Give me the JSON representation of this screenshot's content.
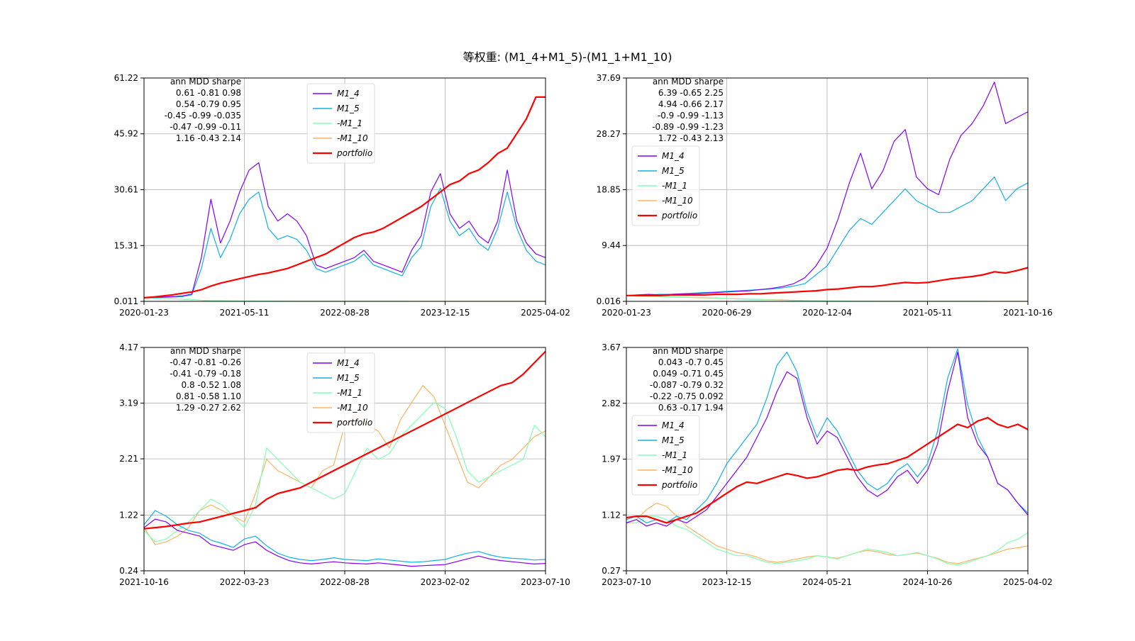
{
  "title": "等权重: (M1_4+M1_5)-(M1_1+M1_10)",
  "colors": {
    "M1_4": "#8000ff",
    "M1_5": "#10b0e8",
    "-M1_1": "#80ffb4",
    "-M1_10": "#ffb360",
    "portfolio": "#ff0000"
  },
  "chart_data": [
    {
      "type": "line",
      "panel": "top-left",
      "legend_position": "top-center",
      "ylim": [
        0.011,
        61.22
      ],
      "yticks": [
        "0.011",
        "15.31",
        "30.61",
        "45.92",
        "61.22"
      ],
      "ytick_values": [
        0.011,
        15.31,
        30.61,
        45.92,
        61.22
      ],
      "xticks": [
        "2020-01-23",
        "2021-05-11",
        "2022-08-28",
        "2023-12-15",
        "2025-04-02"
      ],
      "stats_header": "ann   MDD sharpe",
      "stats_rows": [
        "0.61 -0.81   0.98",
        "0.54 -0.79   0.95",
        "-0.45 -0.99 -0.035",
        "-0.47 -0.99  -0.11",
        "1.16 -0.43   2.14"
      ],
      "legend": [
        "M1_4",
        "M1_5",
        "-M1_1",
        "-M1_10",
        "portfolio"
      ],
      "series": [
        {
          "name": "M1_4",
          "values": [
            1.0,
            1.1,
            1.2,
            1.3,
            1.5,
            2.0,
            12,
            28,
            16,
            22,
            30,
            36,
            38,
            26,
            22,
            24,
            22,
            18,
            10,
            9,
            10,
            11,
            12,
            14,
            11,
            10,
            9,
            8,
            14,
            18,
            30,
            35,
            24,
            20,
            22,
            18,
            16,
            22,
            36,
            22,
            16,
            13,
            12
          ]
        },
        {
          "name": "M1_5",
          "values": [
            1.0,
            1.0,
            1.1,
            1.2,
            1.3,
            1.8,
            9,
            20,
            12,
            17,
            24,
            28,
            30,
            20,
            17,
            18,
            17,
            14,
            9,
            8,
            9,
            10,
            11,
            13,
            10,
            9,
            8,
            7,
            12,
            15,
            26,
            31,
            22,
            18,
            20,
            16,
            14,
            20,
            30,
            20,
            14,
            11,
            10
          ]
        },
        {
          "name": "-M1_1",
          "values": [
            1.0,
            0.9,
            0.8,
            0.7,
            0.6,
            0.5,
            0.3,
            0.2,
            0.2,
            0.15,
            0.1,
            0.1,
            0.08,
            0.08,
            0.07,
            0.06,
            0.05,
            0.05,
            0.05,
            0.04,
            0.04,
            0.04,
            0.03,
            0.03,
            0.03,
            0.03,
            0.03,
            0.03,
            0.02,
            0.02,
            0.02,
            0.02,
            0.02,
            0.02,
            0.02,
            0.02,
            0.02,
            0.02,
            0.02,
            0.02,
            0.02,
            0.02,
            0.02
          ]
        },
        {
          "name": "-M1_10",
          "values": [
            1.0,
            0.9,
            0.8,
            0.7,
            0.6,
            0.5,
            0.3,
            0.2,
            0.2,
            0.15,
            0.1,
            0.1,
            0.08,
            0.08,
            0.07,
            0.06,
            0.05,
            0.05,
            0.05,
            0.04,
            0.04,
            0.04,
            0.03,
            0.03,
            0.03,
            0.03,
            0.03,
            0.03,
            0.02,
            0.02,
            0.02,
            0.02,
            0.02,
            0.02,
            0.02,
            0.02,
            0.02,
            0.02,
            0.02,
            0.02,
            0.02,
            0.02,
            0.02
          ]
        },
        {
          "name": "portfolio",
          "values": [
            1.0,
            1.2,
            1.5,
            1.8,
            2.2,
            2.6,
            3.2,
            4.2,
            5.0,
            5.6,
            6.2,
            6.8,
            7.4,
            7.8,
            8.4,
            9.0,
            10.0,
            11.0,
            12.0,
            13.0,
            14.5,
            16.0,
            17.5,
            18.5,
            19.0,
            20.0,
            21.5,
            23.0,
            24.5,
            26.0,
            28.0,
            30.0,
            32.0,
            33.0,
            35.0,
            36.0,
            38.0,
            40.5,
            42.0,
            46.0,
            50.0,
            56.0,
            56.0
          ]
        }
      ]
    },
    {
      "type": "line",
      "panel": "top-right",
      "legend_position": "center-left",
      "ylim": [
        0.016,
        37.69
      ],
      "yticks": [
        "0.016",
        "9.44",
        "18.85",
        "28.27",
        "37.69"
      ],
      "ytick_values": [
        0.016,
        9.44,
        18.85,
        28.27,
        37.69
      ],
      "xticks": [
        "2020-01-23",
        "2020-06-29",
        "2020-12-04",
        "2021-05-11",
        "2021-10-16"
      ],
      "stats_header": "ann   MDD sharpe",
      "stats_rows": [
        "6.39 -0.65   2.25",
        "4.94 -0.66   2.17",
        "-0.9 -0.99  -1.13",
        "-0.89 -0.99  -1.23",
        "1.72 -0.43   2.13"
      ],
      "legend": [
        "M1_4",
        "M1_5",
        "-M1_1",
        "-M1_10",
        "portfolio"
      ],
      "series": [
        {
          "name": "M1_4",
          "values": [
            1.0,
            1.1,
            1.2,
            1.1,
            1.2,
            1.3,
            1.3,
            1.4,
            1.5,
            1.6,
            1.7,
            1.8,
            2.0,
            2.2,
            2.5,
            3.0,
            4.0,
            6.0,
            9.0,
            14,
            20,
            25,
            19,
            22,
            27,
            29,
            21,
            19,
            18,
            24,
            28,
            30,
            33,
            37,
            30,
            31,
            32
          ]
        },
        {
          "name": "M1_5",
          "values": [
            1.0,
            1.0,
            1.1,
            1.2,
            1.2,
            1.3,
            1.4,
            1.5,
            1.6,
            1.7,
            1.8,
            1.9,
            2.0,
            2.1,
            2.3,
            2.6,
            3.0,
            4.5,
            6.0,
            9.0,
            12,
            14,
            13,
            15,
            17,
            19,
            17,
            16,
            15,
            15,
            16,
            17,
            19,
            21,
            17,
            19,
            20
          ]
        },
        {
          "name": "-M1_1",
          "values": [
            1.0,
            0.95,
            0.9,
            0.85,
            0.8,
            0.75,
            0.7,
            0.65,
            0.6,
            0.5,
            0.4,
            0.35,
            0.3,
            0.25,
            0.2,
            0.15,
            0.12,
            0.1,
            0.08,
            0.06,
            0.05,
            0.05,
            0.05,
            0.04,
            0.04,
            0.04,
            0.04,
            0.03,
            0.03,
            0.03,
            0.03,
            0.03,
            0.03,
            0.02,
            0.02,
            0.02,
            0.02
          ]
        },
        {
          "name": "-M1_10",
          "values": [
            1.0,
            0.9,
            0.85,
            0.8,
            0.75,
            0.7,
            0.65,
            0.6,
            0.55,
            0.5,
            0.45,
            0.4,
            0.35,
            0.3,
            0.25,
            0.2,
            0.15,
            0.12,
            0.1,
            0.08,
            0.06,
            0.05,
            0.05,
            0.04,
            0.04,
            0.04,
            0.04,
            0.03,
            0.03,
            0.03,
            0.03,
            0.03,
            0.03,
            0.02,
            0.02,
            0.02,
            0.02
          ]
        },
        {
          "name": "portfolio",
          "values": [
            1.0,
            1.0,
            1.0,
            1.0,
            1.1,
            1.1,
            1.1,
            1.1,
            1.2,
            1.2,
            1.2,
            1.3,
            1.3,
            1.4,
            1.5,
            1.6,
            1.7,
            1.8,
            2.0,
            2.1,
            2.3,
            2.5,
            2.5,
            2.7,
            3.0,
            3.2,
            3.1,
            3.2,
            3.5,
            3.8,
            4.0,
            4.2,
            4.5,
            5.0,
            4.8,
            5.2,
            5.7
          ]
        }
      ]
    },
    {
      "type": "line",
      "panel": "bottom-left",
      "legend_position": "top-center",
      "ylim": [
        0.24,
        4.17
      ],
      "yticks": [
        "0.24",
        "1.22",
        "2.21",
        "3.19",
        "4.17"
      ],
      "ytick_values": [
        0.24,
        1.22,
        2.21,
        3.19,
        4.17
      ],
      "xticks": [
        "2021-10-16",
        "2022-03-23",
        "2022-08-28",
        "2023-02-02",
        "2023-07-10"
      ],
      "stats_header": "ann   MDD sharpe",
      "stats_rows": [
        "-0.47 -0.81  -0.26",
        "-0.41 -0.79  -0.18",
        "0.8 -0.52   1.08",
        "0.81 -0.58   1.10",
        "1.29 -0.27   2.62"
      ],
      "legend": [
        "M1_4",
        "M1_5",
        "-M1_1",
        "-M1_10",
        "portfolio"
      ],
      "series": [
        {
          "name": "M1_4",
          "values": [
            1.0,
            1.15,
            1.1,
            0.95,
            0.9,
            0.85,
            0.7,
            0.65,
            0.6,
            0.7,
            0.75,
            0.6,
            0.5,
            0.42,
            0.38,
            0.36,
            0.38,
            0.4,
            0.38,
            0.37,
            0.36,
            0.38,
            0.36,
            0.34,
            0.32,
            0.33,
            0.34,
            0.35,
            0.4,
            0.45,
            0.5,
            0.45,
            0.42,
            0.4,
            0.38,
            0.36,
            0.37
          ]
        },
        {
          "name": "M1_5",
          "values": [
            1.05,
            1.3,
            1.2,
            1.05,
            0.95,
            0.9,
            0.78,
            0.72,
            0.65,
            0.8,
            0.85,
            0.68,
            0.55,
            0.48,
            0.44,
            0.42,
            0.44,
            0.47,
            0.44,
            0.43,
            0.42,
            0.45,
            0.43,
            0.41,
            0.39,
            0.4,
            0.42,
            0.44,
            0.5,
            0.55,
            0.58,
            0.52,
            0.48,
            0.46,
            0.45,
            0.43,
            0.44
          ]
        },
        {
          "name": "-M1_1",
          "values": [
            0.95,
            0.75,
            0.8,
            0.95,
            1.1,
            1.3,
            1.5,
            1.4,
            1.2,
            1.0,
            1.4,
            2.4,
            2.2,
            2.0,
            1.8,
            1.7,
            1.6,
            1.5,
            1.6,
            2.0,
            2.4,
            2.2,
            2.3,
            2.6,
            2.8,
            3.0,
            3.2,
            3.1,
            2.6,
            2.0,
            1.8,
            1.9,
            2.0,
            2.1,
            2.2,
            2.8,
            2.6
          ]
        },
        {
          "name": "-M1_10",
          "values": [
            1.0,
            0.7,
            0.75,
            0.85,
            1.0,
            1.3,
            1.4,
            1.3,
            1.2,
            1.1,
            1.6,
            2.2,
            2.0,
            1.9,
            1.8,
            1.7,
            2.0,
            2.1,
            2.8,
            3.0,
            2.8,
            2.7,
            2.4,
            2.9,
            3.2,
            3.5,
            3.3,
            2.8,
            2.3,
            1.8,
            1.7,
            1.9,
            2.1,
            2.2,
            2.4,
            2.6,
            2.7
          ]
        },
        {
          "name": "portfolio",
          "values": [
            0.98,
            1.0,
            1.02,
            1.05,
            1.08,
            1.1,
            1.15,
            1.2,
            1.25,
            1.3,
            1.35,
            1.5,
            1.6,
            1.65,
            1.7,
            1.8,
            1.9,
            2.0,
            2.1,
            2.2,
            2.3,
            2.4,
            2.5,
            2.6,
            2.7,
            2.8,
            2.9,
            3.0,
            3.1,
            3.2,
            3.3,
            3.4,
            3.5,
            3.55,
            3.7,
            3.9,
            4.1
          ]
        }
      ]
    },
    {
      "type": "line",
      "panel": "bottom-right",
      "legend_position": "center-left",
      "ylim": [
        0.27,
        3.67
      ],
      "yticks": [
        "0.27",
        "1.12",
        "1.97",
        "2.82",
        "3.67"
      ],
      "ytick_values": [
        0.27,
        1.12,
        1.97,
        2.82,
        3.67
      ],
      "xticks": [
        "2023-07-10",
        "2023-12-15",
        "2024-05-21",
        "2024-10-26",
        "2025-04-02"
      ],
      "stats_header": "ann   MDD sharpe",
      "stats_rows": [
        "0.043  -0.7   0.45",
        "0.049 -0.71   0.45",
        "-0.087 -0.79   0.32",
        "-0.22 -0.75  0.092",
        "0.63 -0.17   1.94"
      ],
      "legend": [
        "M1_4",
        "M1_5",
        "-M1_1",
        "-M1_10",
        "portfolio"
      ],
      "series": [
        {
          "name": "M1_4",
          "values": [
            1.0,
            1.05,
            0.95,
            1.0,
            0.95,
            1.05,
            1.0,
            1.1,
            1.2,
            1.4,
            1.6,
            1.8,
            2.0,
            2.3,
            2.6,
            3.0,
            3.3,
            3.2,
            2.6,
            2.2,
            2.4,
            2.3,
            2.0,
            1.7,
            1.5,
            1.4,
            1.5,
            1.7,
            1.8,
            1.6,
            1.8,
            2.2,
            3.0,
            3.6,
            2.6,
            2.2,
            2.0,
            1.6,
            1.5,
            1.3,
            1.12
          ]
        },
        {
          "name": "M1_5",
          "values": [
            1.05,
            1.1,
            1.0,
            1.05,
            1.0,
            1.1,
            1.05,
            1.2,
            1.35,
            1.6,
            1.9,
            2.1,
            2.3,
            2.5,
            2.9,
            3.4,
            3.6,
            3.3,
            2.7,
            2.3,
            2.6,
            2.4,
            2.1,
            1.8,
            1.6,
            1.5,
            1.6,
            1.8,
            1.9,
            1.7,
            1.9,
            2.4,
            3.2,
            3.65,
            2.8,
            2.3,
            2.0,
            1.6,
            1.5,
            1.3,
            1.15
          ]
        },
        {
          "name": "-M1_1",
          "values": [
            1.0,
            1.0,
            1.1,
            1.1,
            1.05,
            0.95,
            0.9,
            0.8,
            0.7,
            0.6,
            0.55,
            0.5,
            0.5,
            0.45,
            0.4,
            0.38,
            0.4,
            0.42,
            0.45,
            0.5,
            0.48,
            0.45,
            0.5,
            0.55,
            0.6,
            0.58,
            0.55,
            0.5,
            0.52,
            0.55,
            0.5,
            0.45,
            0.38,
            0.36,
            0.4,
            0.45,
            0.5,
            0.58,
            0.7,
            0.75,
            0.85
          ]
        },
        {
          "name": "-M1_10",
          "values": [
            1.0,
            1.05,
            1.2,
            1.3,
            1.25,
            1.1,
            0.95,
            0.85,
            0.75,
            0.65,
            0.6,
            0.55,
            0.52,
            0.48,
            0.42,
            0.4,
            0.42,
            0.45,
            0.48,
            0.5,
            0.48,
            0.46,
            0.5,
            0.55,
            0.58,
            0.56,
            0.52,
            0.5,
            0.52,
            0.54,
            0.5,
            0.46,
            0.4,
            0.38,
            0.42,
            0.46,
            0.5,
            0.55,
            0.6,
            0.62,
            0.65
          ]
        },
        {
          "name": "portfolio",
          "values": [
            1.08,
            1.1,
            1.1,
            1.05,
            1.0,
            1.05,
            1.1,
            1.15,
            1.25,
            1.35,
            1.45,
            1.55,
            1.62,
            1.6,
            1.65,
            1.7,
            1.75,
            1.72,
            1.68,
            1.7,
            1.75,
            1.8,
            1.82,
            1.8,
            1.85,
            1.88,
            1.9,
            1.95,
            2.0,
            2.1,
            2.2,
            2.3,
            2.4,
            2.5,
            2.45,
            2.55,
            2.6,
            2.5,
            2.45,
            2.5,
            2.42
          ]
        }
      ]
    }
  ]
}
